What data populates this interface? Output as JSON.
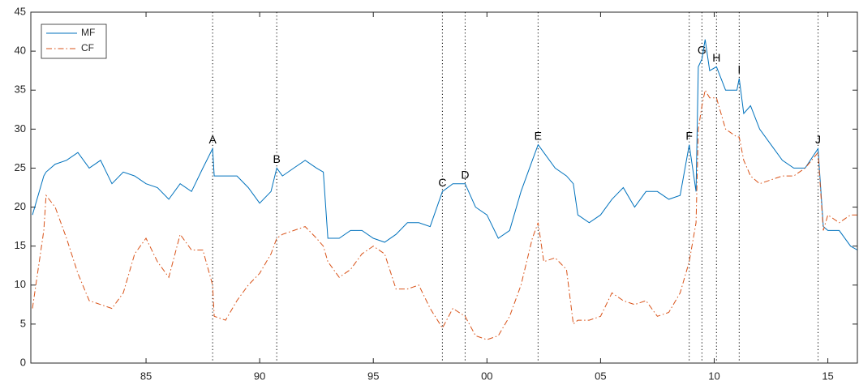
{
  "chart_data": {
    "type": "line",
    "x": [
      1980.0,
      1980.5,
      1980.6,
      1981.0,
      1981.5,
      1982.0,
      1982.5,
      1983.0,
      1983.5,
      1984.0,
      1984.5,
      1985.0,
      1985.5,
      1986.0,
      1986.5,
      1987.0,
      1987.5,
      1987.93,
      1988.0,
      1988.5,
      1989.0,
      1989.5,
      1990.0,
      1990.5,
      1990.75,
      1991.0,
      1991.5,
      1992.0,
      1992.5,
      1992.8,
      1993.0,
      1993.5,
      1994.0,
      1994.5,
      1995.0,
      1995.5,
      1996.0,
      1996.5,
      1997.0,
      1997.5,
      1998.04,
      1998.5,
      1999.04,
      1999.5,
      2000.0,
      2000.5,
      2001.0,
      2001.5,
      2002.0,
      2002.25,
      2002.5,
      2003.0,
      2003.5,
      2003.8,
      2004.0,
      2004.5,
      2005.0,
      2005.5,
      2006.0,
      2006.5,
      2007.0,
      2007.5,
      2008.0,
      2008.5,
      2008.9,
      2009.2,
      2009.3,
      2009.46,
      2009.6,
      2009.8,
      2010.1,
      2010.5,
      2011.0,
      2011.1,
      2011.3,
      2011.6,
      2012.0,
      2012.5,
      2013.0,
      2013.5,
      2014.0,
      2014.57,
      2014.8,
      2015.0,
      2015.5,
      2016.0,
      2016.3
    ],
    "series": [
      {
        "name": "MF",
        "color": "#0072bd",
        "linestyle": "solid",
        "values": [
          19,
          24,
          24.5,
          25.5,
          26,
          27,
          25,
          26,
          23,
          24.5,
          24,
          23,
          22.5,
          21,
          23,
          22,
          25,
          27.5,
          24,
          24,
          24,
          22.5,
          20.5,
          22,
          25,
          24,
          25,
          26,
          25,
          24.5,
          16,
          16,
          17,
          17,
          16,
          15.5,
          16.5,
          18,
          18,
          17.5,
          22,
          23,
          23,
          20,
          19,
          16,
          17,
          22,
          26,
          28,
          27,
          25,
          24,
          23,
          19,
          18,
          19,
          21,
          22.5,
          20,
          22,
          22,
          21,
          21.5,
          28,
          22,
          38,
          39,
          41.5,
          37.5,
          38,
          35,
          35,
          36.5,
          32,
          33,
          30,
          28,
          26,
          25,
          25,
          27.5,
          17.5,
          17,
          17,
          15,
          14.5
        ]
      },
      {
        "name": "CF",
        "color": "#d95319",
        "linestyle": "dashdot",
        "values": [
          7,
          17,
          21.5,
          20,
          16,
          11.5,
          8,
          7.5,
          7,
          9,
          14,
          16,
          13,
          11,
          16.5,
          14.5,
          14.5,
          10,
          6,
          5.5,
          8,
          10,
          11.5,
          14,
          16,
          16.5,
          17,
          17.5,
          16,
          15,
          13,
          11,
          12,
          14,
          15,
          14,
          9.5,
          9.5,
          10,
          7,
          4.5,
          7,
          6,
          3.5,
          3,
          3.5,
          6,
          10,
          16,
          18,
          13,
          13.5,
          12,
          5,
          5.5,
          5.5,
          6,
          9,
          8,
          7.5,
          8,
          6,
          6.5,
          9,
          13,
          18,
          30,
          33,
          35,
          34,
          34,
          30,
          29,
          29,
          26,
          24,
          23,
          23.5,
          24,
          24,
          25,
          27,
          17,
          19,
          18,
          19,
          19
        ]
      }
    ],
    "events": [
      {
        "x": 1987.93,
        "label": "A"
      },
      {
        "x": 1990.75,
        "label": "B"
      },
      {
        "x": 1998.04,
        "label": "C"
      },
      {
        "x": 1999.04,
        "label": "D"
      },
      {
        "x": 2002.25,
        "label": "E"
      },
      {
        "x": 2008.9,
        "label": "F"
      },
      {
        "x": 2009.46,
        "label": "G"
      },
      {
        "x": 2010.1,
        "label": "H"
      },
      {
        "x": 2011.1,
        "label": "I"
      },
      {
        "x": 2014.57,
        "label": "J"
      }
    ],
    "xlim": [
      1979.93,
      2016.3
    ],
    "ylim": [
      0,
      45
    ],
    "xticks": [
      {
        "value": 1985,
        "label": "85"
      },
      {
        "value": 1990,
        "label": "90"
      },
      {
        "value": 1995,
        "label": "95"
      },
      {
        "value": 2000,
        "label": "00"
      },
      {
        "value": 2005,
        "label": "05"
      },
      {
        "value": 2010,
        "label": "10"
      },
      {
        "value": 2015,
        "label": "15"
      }
    ],
    "yticks": [
      0,
      5,
      10,
      15,
      20,
      25,
      30,
      35,
      40,
      45
    ],
    "legend": "upper left",
    "grid": false
  }
}
